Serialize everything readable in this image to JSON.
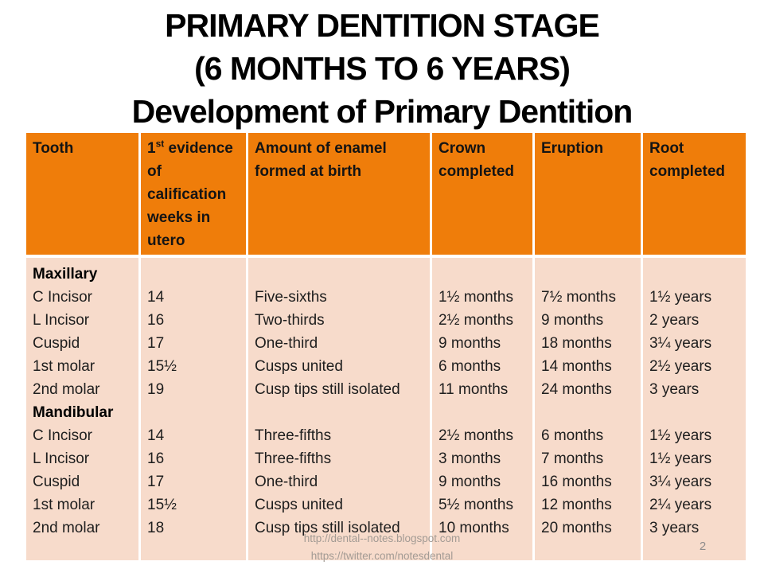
{
  "slide": {
    "title_lines": [
      "PRIMARY DENTITION STAGE",
      "(6 MONTHS TO 6 YEARS)",
      "Development of Primary Dentition"
    ],
    "footer_links": [
      "http://dental--notes.blogspot.com",
      "https://twitter.com/notesdental"
    ],
    "page_number": "2"
  },
  "colors": {
    "header_bg": "#EF7D0A",
    "body_bg": "#F7DBCB",
    "footer_text": "#A39B94"
  },
  "table": {
    "header": {
      "tooth": "Tooth",
      "calcification": {
        "num": "1",
        "sup": "st",
        "rest": "evidence of calification weeks in utero"
      },
      "enamel": "Amount of enamel formed at birth",
      "crown": "Crown completed",
      "eruption": "Eruption",
      "root": "Root completed"
    },
    "sections": [
      {
        "group": "Maxillary",
        "rows": [
          {
            "tooth": "C Incisor",
            "calcification": "14",
            "enamel": "Five-sixths",
            "crown": "1½ months",
            "eruption": "7½ months",
            "root": "1½ years"
          },
          {
            "tooth": "L Incisor",
            "calcification": "16",
            "enamel": "Two-thirds",
            "crown": "2½ months",
            "eruption": "9 months",
            "root": "2 years"
          },
          {
            "tooth": "Cuspid",
            "calcification": "17",
            "enamel": "One-third",
            "crown": "9 months",
            "eruption": "18 months",
            "root": "3¼ years"
          },
          {
            "tooth": "1st molar",
            "calcification": "15½",
            "enamel": "Cusps united",
            "crown": "6 months",
            "eruption": "14 months",
            "root": "2½ years"
          },
          {
            "tooth": "2nd molar",
            "calcification": "19",
            "enamel": "Cusp tips still isolated",
            "crown": "11 months",
            "eruption": "24 months",
            "root": "3 years"
          }
        ]
      },
      {
        "group": "Mandibular",
        "rows": [
          {
            "tooth": "C Incisor",
            "calcification": "14",
            "enamel": "Three-fifths",
            "crown": "2½ months",
            "eruption": "6 months",
            "root": "1½ years"
          },
          {
            "tooth": "L Incisor",
            "calcification": "16",
            "enamel": "Three-fifths",
            "crown": "3 months",
            "eruption": "7 months",
            "root": "1½ years"
          },
          {
            "tooth": "Cuspid",
            "calcification": "17",
            "enamel": "One-third",
            "crown": "9 months",
            "eruption": "16 months",
            "root": "3¼ years"
          },
          {
            "tooth": "1st molar",
            "calcification": "15½",
            "enamel": "Cusps united",
            "crown": "5½ months",
            "eruption": "12 months",
            "root": "2¼ years"
          },
          {
            "tooth": "2nd molar",
            "calcification": "18",
            "enamel": "Cusp tips still isolated",
            "crown": "10 months",
            "eruption": "20 months",
            "root": "3 years"
          }
        ]
      }
    ]
  }
}
